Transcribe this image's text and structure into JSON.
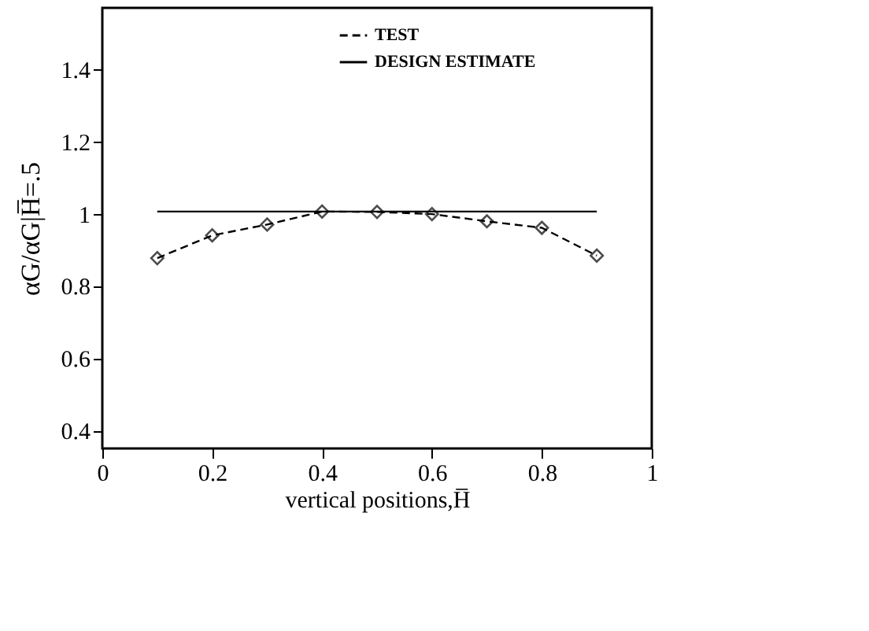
{
  "chart_data": {
    "type": "line",
    "xlabel": "vertical positions,H̅",
    "ylabel": "αG/αG|H̅=.5",
    "series": [
      {
        "name": "TEST",
        "color": "#000000",
        "marker": "diamond",
        "line_style": "dashed",
        "x": [
          0.1,
          0.2,
          0.3,
          0.4,
          0.5,
          0.6,
          0.7,
          0.8,
          0.9
        ],
        "values": [
          0.877,
          0.94,
          0.97,
          1.006,
          1.005,
          0.999,
          0.979,
          0.961,
          0.884
        ]
      },
      {
        "name": "DESIGN ESTIMATE",
        "color": "#000000",
        "marker": "none",
        "line_style": "solid",
        "x": [
          0.1,
          0.9
        ],
        "values": [
          1.006,
          1.006
        ]
      }
    ],
    "xlim": [
      0,
      1
    ],
    "xticks": [
      0,
      0.2,
      0.4,
      0.6,
      0.8,
      1
    ],
    "ylim": [
      0.35,
      1.57
    ],
    "yticks": [
      0.4,
      0.6,
      0.8,
      1,
      1.2,
      1.4
    ],
    "grid": false,
    "legend": "top"
  }
}
